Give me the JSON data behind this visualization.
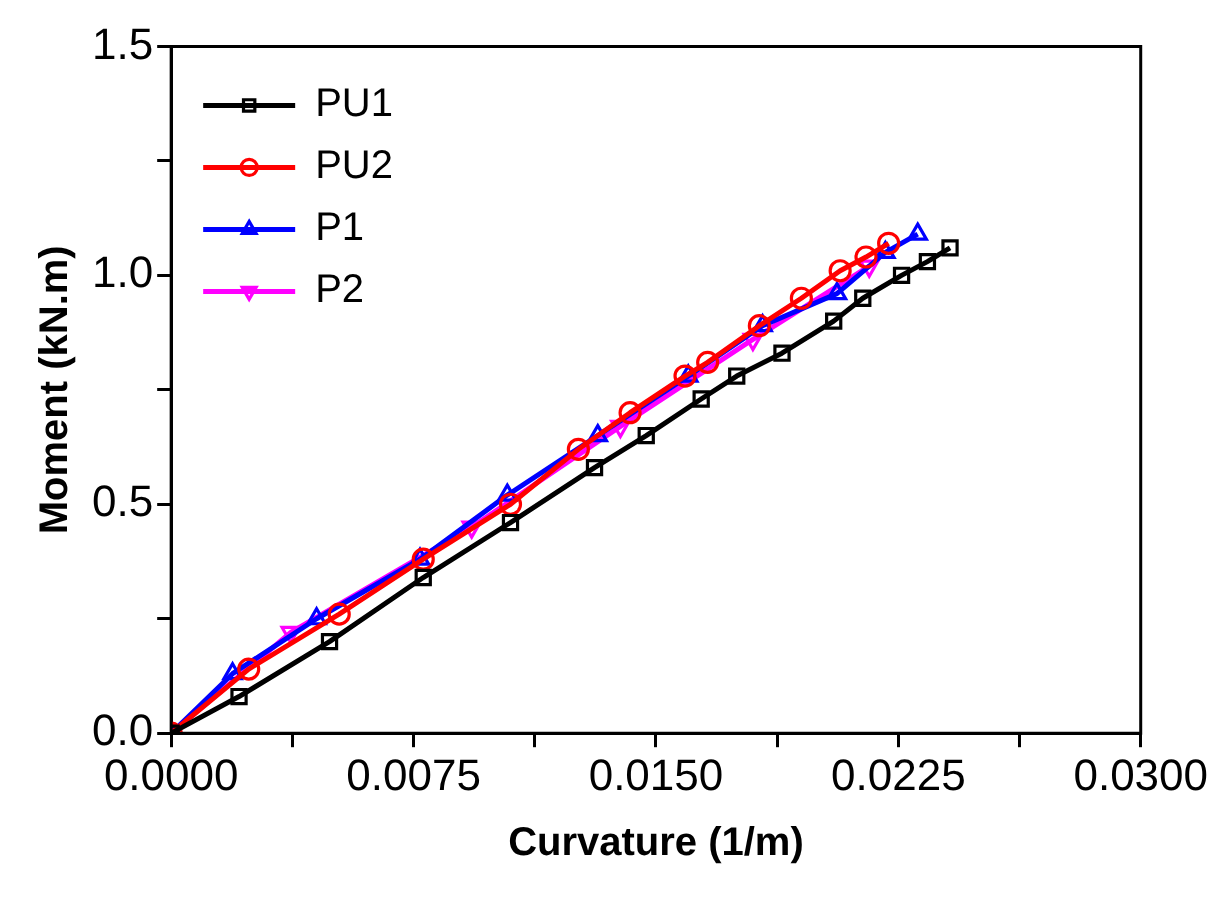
{
  "chart_data": {
    "type": "line",
    "xlabel": "Curvature (1/m)",
    "ylabel": "Moment (kN.m)",
    "xlim": [
      0,
      0.03
    ],
    "xticks": [
      {
        "value": 0,
        "label": "0.0000"
      },
      {
        "value": 0.00375,
        "label": null
      },
      {
        "value": 0.0075,
        "label": "0.0075"
      },
      {
        "value": 0.01125,
        "label": null
      },
      {
        "value": 0.015,
        "label": "0.0150"
      },
      {
        "value": 0.01875,
        "label": null
      },
      {
        "value": 0.0225,
        "label": "0.0225"
      },
      {
        "value": 0.02625,
        "label": null
      },
      {
        "value": 0.03,
        "label": "0.0300"
      }
    ],
    "ylim": [
      0,
      1.5
    ],
    "yticks": [
      {
        "value": 0,
        "label": "0.0"
      },
      {
        "value": 0.25,
        "label": null
      },
      {
        "value": 0.5,
        "label": "0.5"
      },
      {
        "value": 0.75,
        "label": null
      },
      {
        "value": 1,
        "label": "1.0"
      },
      {
        "value": 1.25,
        "label": null
      },
      {
        "value": 1.5,
        "label": "1.5"
      }
    ],
    "grid": false,
    "legend": "top left",
    "line_style": "solid",
    "series": [
      {
        "name": "PU1",
        "color": "#000000",
        "marker": "square",
        "x": [
          0,
          0.0021,
          0.0049,
          0.0078,
          0.0105,
          0.0131,
          0.0147,
          0.0164,
          0.0175,
          0.0189,
          0.0205,
          0.0214,
          0.0226,
          0.0234,
          0.0241
        ],
        "values": [
          0,
          0.08,
          0.2,
          0.34,
          0.46,
          0.58,
          0.65,
          0.73,
          0.78,
          0.83,
          0.9,
          0.95,
          1,
          1.03,
          1.06
        ]
      },
      {
        "name": "PU2",
        "color": "#ff0000",
        "marker": "circle",
        "x": [
          0,
          0.0024,
          0.0052,
          0.0078,
          0.0105,
          0.0126,
          0.0142,
          0.0159,
          0.0166,
          0.0182,
          0.0195,
          0.0207,
          0.0215,
          0.0222
        ],
        "values": [
          0,
          0.14,
          0.26,
          0.38,
          0.5,
          0.62,
          0.7,
          0.78,
          0.81,
          0.89,
          0.95,
          1.01,
          1.04,
          1.07
        ]
      },
      {
        "name": "P1",
        "color": "#0000ff",
        "marker": "triangle",
        "x": [
          0,
          0.0019,
          0.0045,
          0.0077,
          0.0104,
          0.0132,
          0.016,
          0.0183,
          0.0206,
          0.0221,
          0.0231
        ],
        "values": [
          0,
          0.13,
          0.25,
          0.38,
          0.52,
          0.65,
          0.78,
          0.89,
          0.96,
          1.05,
          1.09
        ]
      },
      {
        "name": "P2",
        "color": "#ff00ff",
        "marker": "triangle-down",
        "x": [
          0,
          0.0037,
          0.0093,
          0.0139,
          0.018,
          0.0216
        ],
        "values": [
          0,
          0.22,
          0.45,
          0.67,
          0.86,
          1.02
        ]
      }
    ]
  }
}
